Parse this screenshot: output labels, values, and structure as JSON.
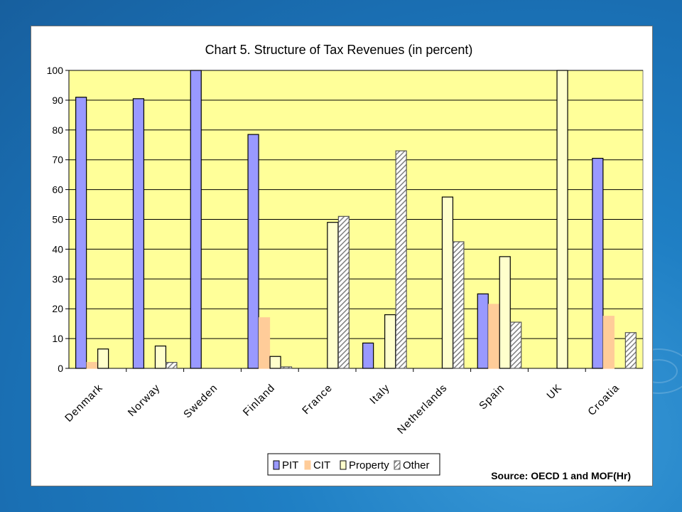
{
  "colors": {
    "background": "#1f7fc4",
    "plot_area": "#ffff99",
    "pit": "#9999ff",
    "cit": "#ffcc99",
    "property": "#ffffcc",
    "other": "#c0c0c0",
    "bar_border": "#000000"
  },
  "chart_data": {
    "type": "bar",
    "title": "Chart 5. Structure of Tax Revenues (in percent)",
    "categories": [
      "Denmark",
      "Norway",
      "Sweden",
      "Finland",
      "France",
      "Italy",
      "Netherlands",
      "Spain",
      "UK",
      "Croatia"
    ],
    "series": [
      {
        "name": "PIT",
        "values": [
          91,
          90.5,
          100,
          78.5,
          0,
          8.5,
          0,
          25,
          0,
          70.5
        ]
      },
      {
        "name": "CIT",
        "values": [
          2,
          0,
          0,
          17,
          0,
          0,
          0,
          21.5,
          0,
          17.5
        ]
      },
      {
        "name": "Property",
        "values": [
          6.5,
          7.5,
          0,
          4,
          49,
          18,
          57.5,
          37.5,
          100,
          0
        ]
      },
      {
        "name": "Other",
        "values": [
          0,
          2,
          0,
          0.5,
          51,
          73,
          42.5,
          15.5,
          0,
          12
        ]
      }
    ],
    "ylim": [
      0,
      100
    ],
    "yticks": [
      0,
      10,
      20,
      30,
      40,
      50,
      60,
      70,
      80,
      90,
      100
    ],
    "grid": true,
    "legend": "bottom",
    "source": "Source: OECD 1 and MOF(Hr)"
  }
}
